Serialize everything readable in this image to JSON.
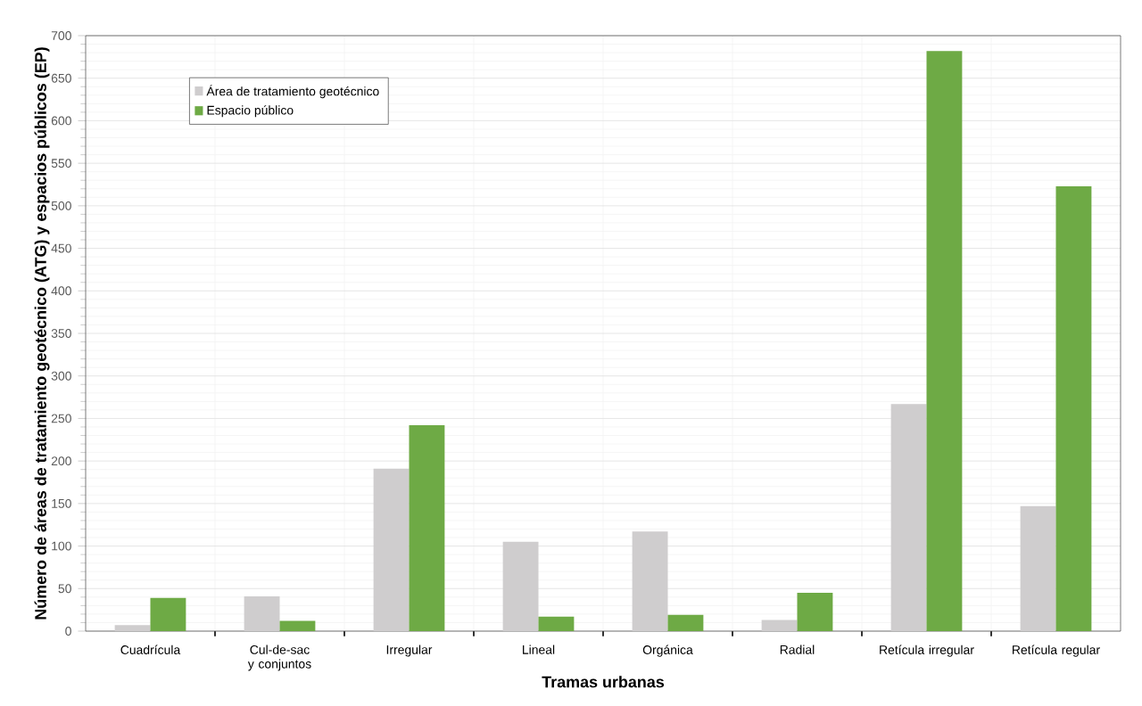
{
  "chart_data": {
    "type": "bar",
    "xlabel": "Tramas urbanas",
    "ylabel": "Número de áreas de tratamiento geotécnico (ATG) y espacios públicos (EP)",
    "categories": [
      "Cuadrícula",
      "Cul-de-sac y conjuntos",
      "Irregular",
      "Lineal",
      "Orgánica",
      "Radial",
      "Retícula irregular",
      "Retícula regular"
    ],
    "series": [
      {
        "name": "Área de tratamiento geotécnico",
        "color": "#cfcdce",
        "values": [
          7,
          41,
          191,
          105,
          117,
          13,
          267,
          147
        ]
      },
      {
        "name": "Espacio público",
        "color": "#6eaa45",
        "values": [
          39,
          12,
          242,
          17,
          19,
          45,
          682,
          523
        ]
      }
    ],
    "ylim": [
      0,
      700
    ],
    "yticks": [
      0,
      50,
      100,
      150,
      200,
      250,
      300,
      350,
      400,
      450,
      500,
      550,
      600,
      650,
      700
    ],
    "grid": true,
    "legend": "top left"
  }
}
